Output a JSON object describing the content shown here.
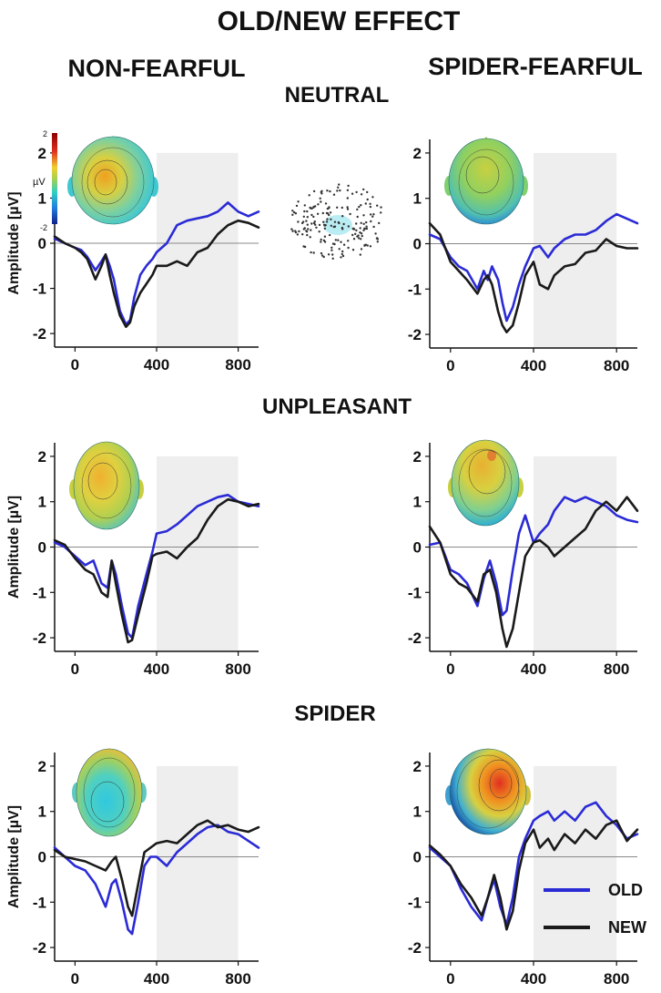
{
  "title": "OLD/NEW EFFECT",
  "columns": [
    "NON-FEARFUL",
    "SPIDER-FEARFUL"
  ],
  "rows": [
    "NEUTRAL",
    "UNPLEASANT",
    "SPIDER"
  ],
  "colors": {
    "old": "#2b2bd6",
    "new": "#1a1a1a",
    "shade": "#eeeeee",
    "zero_line": "#888888"
  },
  "colorbar": {
    "unit": "µV",
    "max_label": "2",
    "min_label": "-2"
  },
  "legend": [
    {
      "key": "old",
      "label": "OLD"
    },
    {
      "key": "new",
      "label": "NEW"
    }
  ],
  "chart_data": [
    {
      "type": "line",
      "row": "NEUTRAL",
      "group": "NON-FEARFUL",
      "ylabel": "Amplitude [µV]",
      "xlabel": "",
      "xlim": [
        -100,
        900
      ],
      "ylim": [
        -2.3,
        2.3
      ],
      "xticks": [
        0,
        400,
        800
      ],
      "yticks": [
        -2,
        -1,
        0,
        1,
        2
      ],
      "shaded_window": [
        400,
        800
      ],
      "series": [
        {
          "name": "OLD",
          "x": [
            -100,
            -50,
            0,
            30,
            60,
            100,
            130,
            150,
            170,
            190,
            220,
            250,
            270,
            290,
            320,
            350,
            380,
            400,
            450,
            500,
            550,
            600,
            650,
            700,
            750,
            800,
            850,
            900
          ],
          "y": [
            0.1,
            0,
            -0.1,
            -0.15,
            -0.3,
            -0.6,
            -0.4,
            -0.25,
            -0.5,
            -0.8,
            -1.5,
            -1.8,
            -1.7,
            -1.2,
            -0.7,
            -0.5,
            -0.35,
            -0.2,
            0,
            0.4,
            0.5,
            0.55,
            0.6,
            0.7,
            0.9,
            0.7,
            0.6,
            0.7
          ]
        },
        {
          "name": "NEW",
          "x": [
            -100,
            -50,
            0,
            30,
            60,
            100,
            130,
            150,
            170,
            190,
            220,
            250,
            270,
            290,
            320,
            350,
            380,
            400,
            450,
            500,
            550,
            600,
            650,
            700,
            750,
            800,
            850,
            900
          ],
          "y": [
            0.15,
            0,
            -0.1,
            -0.2,
            -0.35,
            -0.8,
            -0.5,
            -0.25,
            -0.7,
            -1.1,
            -1.6,
            -1.85,
            -1.75,
            -1.4,
            -1.1,
            -0.9,
            -0.7,
            -0.5,
            -0.5,
            -0.4,
            -0.5,
            -0.2,
            -0.1,
            0.2,
            0.4,
            0.5,
            0.45,
            0.35
          ]
        }
      ]
    },
    {
      "type": "line",
      "row": "NEUTRAL",
      "group": "SPIDER-FEARFUL",
      "ylabel": "Amplitude [µV]",
      "xlabel": "",
      "xlim": [
        -100,
        900
      ],
      "ylim": [
        -2.3,
        2.3
      ],
      "xticks": [
        0,
        400,
        800
      ],
      "yticks": [
        -2,
        -1,
        0,
        1,
        2
      ],
      "shaded_window": [
        400,
        800
      ],
      "series": [
        {
          "name": "OLD",
          "x": [
            -100,
            -50,
            0,
            40,
            80,
            130,
            160,
            180,
            200,
            230,
            250,
            270,
            300,
            330,
            360,
            400,
            430,
            470,
            500,
            550,
            600,
            650,
            700,
            750,
            800,
            850,
            900
          ],
          "y": [
            0.2,
            0.1,
            -0.3,
            -0.5,
            -0.6,
            -1.0,
            -0.6,
            -0.8,
            -0.5,
            -0.8,
            -1.3,
            -1.7,
            -1.4,
            -0.9,
            -0.5,
            -0.1,
            -0.05,
            -0.3,
            -0.1,
            0.1,
            0.2,
            0.2,
            0.3,
            0.5,
            0.65,
            0.55,
            0.45
          ]
        },
        {
          "name": "NEW",
          "x": [
            -100,
            -50,
            0,
            40,
            80,
            130,
            160,
            180,
            200,
            230,
            250,
            270,
            300,
            330,
            360,
            400,
            430,
            470,
            500,
            550,
            600,
            650,
            700,
            750,
            800,
            850,
            900
          ],
          "y": [
            0.45,
            0.2,
            -0.4,
            -0.6,
            -0.8,
            -1.1,
            -0.8,
            -0.7,
            -0.9,
            -1.5,
            -1.8,
            -1.95,
            -1.8,
            -1.3,
            -0.7,
            -0.4,
            -0.9,
            -1.0,
            -0.7,
            -0.5,
            -0.45,
            -0.2,
            -0.15,
            0.1,
            -0.05,
            -0.1,
            -0.1
          ]
        }
      ]
    },
    {
      "type": "line",
      "row": "UNPLEASANT",
      "group": "NON-FEARFUL",
      "ylabel": "Amplitude [µV]",
      "xlabel": "",
      "xlim": [
        -100,
        900
      ],
      "ylim": [
        -2.3,
        2.3
      ],
      "xticks": [
        0,
        400,
        800
      ],
      "yticks": [
        -2,
        -1,
        0,
        1,
        2
      ],
      "shaded_window": [
        400,
        800
      ],
      "series": [
        {
          "name": "OLD",
          "x": [
            -100,
            -50,
            0,
            50,
            90,
            130,
            160,
            180,
            200,
            230,
            260,
            280,
            310,
            350,
            380,
            400,
            450,
            500,
            550,
            600,
            650,
            700,
            750,
            800,
            850,
            900
          ],
          "y": [
            0.1,
            0,
            -0.2,
            -0.4,
            -0.3,
            -0.8,
            -0.9,
            -0.3,
            -0.6,
            -1.3,
            -1.9,
            -2.0,
            -1.3,
            -0.6,
            -0.1,
            0.3,
            0.35,
            0.5,
            0.7,
            0.9,
            1.0,
            1.1,
            1.15,
            1.0,
            0.95,
            0.9
          ]
        },
        {
          "name": "NEW",
          "x": [
            -100,
            -50,
            0,
            50,
            90,
            130,
            160,
            180,
            200,
            230,
            260,
            280,
            310,
            350,
            380,
            400,
            450,
            500,
            550,
            600,
            650,
            700,
            750,
            800,
            850,
            900
          ],
          "y": [
            0.15,
            0.05,
            -0.25,
            -0.5,
            -0.6,
            -1.0,
            -1.1,
            -0.3,
            -0.8,
            -1.5,
            -2.1,
            -2.05,
            -1.5,
            -0.8,
            -0.2,
            -0.15,
            -0.1,
            -0.25,
            0,
            0.2,
            0.6,
            0.9,
            1.05,
            1.0,
            0.9,
            0.95
          ]
        }
      ]
    },
    {
      "type": "line",
      "row": "UNPLEASANT",
      "group": "SPIDER-FEARFUL",
      "ylabel": "Amplitude [µV]",
      "xlabel": "",
      "xlim": [
        -100,
        900
      ],
      "ylim": [
        -2.3,
        2.3
      ],
      "xticks": [
        0,
        400,
        800
      ],
      "yticks": [
        -2,
        -1,
        0,
        1,
        2
      ],
      "shaded_window": [
        400,
        800
      ],
      "series": [
        {
          "name": "OLD",
          "x": [
            -100,
            -50,
            0,
            40,
            80,
            130,
            160,
            190,
            220,
            250,
            270,
            300,
            330,
            360,
            400,
            430,
            470,
            500,
            550,
            600,
            650,
            700,
            750,
            800,
            850,
            900
          ],
          "y": [
            0.05,
            0.1,
            -0.5,
            -0.6,
            -0.8,
            -1.3,
            -0.7,
            -0.3,
            -0.8,
            -1.5,
            -1.4,
            -0.5,
            0.3,
            0.7,
            0.1,
            0.3,
            0.5,
            0.8,
            1.1,
            1.0,
            1.1,
            1.0,
            0.9,
            0.7,
            0.6,
            0.55
          ]
        },
        {
          "name": "NEW",
          "x": [
            -100,
            -50,
            0,
            40,
            80,
            130,
            160,
            190,
            220,
            250,
            270,
            300,
            330,
            360,
            400,
            430,
            470,
            500,
            550,
            600,
            650,
            700,
            750,
            800,
            850,
            900
          ],
          "y": [
            0.45,
            0.1,
            -0.6,
            -0.8,
            -0.9,
            -1.2,
            -0.6,
            -0.5,
            -1.0,
            -1.8,
            -2.2,
            -1.8,
            -1.0,
            -0.2,
            0.1,
            0.15,
            0,
            -0.2,
            0,
            0.2,
            0.4,
            0.8,
            1.0,
            0.8,
            1.1,
            0.8
          ]
        }
      ]
    },
    {
      "type": "line",
      "row": "SPIDER",
      "group": "NON-FEARFUL",
      "ylabel": "Amplitude [µV]",
      "xlabel": "",
      "xlim": [
        -100,
        900
      ],
      "ylim": [
        -2.3,
        2.3
      ],
      "xticks": [
        0,
        400,
        800
      ],
      "yticks": [
        -2,
        -1,
        0,
        1,
        2
      ],
      "shaded_window": [
        400,
        800
      ],
      "series": [
        {
          "name": "OLD",
          "x": [
            -100,
            -50,
            0,
            50,
            100,
            150,
            180,
            200,
            230,
            260,
            280,
            310,
            340,
            370,
            400,
            450,
            500,
            550,
            600,
            650,
            700,
            750,
            800,
            850,
            900
          ],
          "y": [
            0.2,
            0,
            -0.2,
            -0.3,
            -0.6,
            -1.1,
            -0.6,
            -0.5,
            -1.0,
            -1.6,
            -1.7,
            -1.0,
            -0.2,
            0,
            0,
            -0.2,
            0.1,
            0.3,
            0.5,
            0.65,
            0.7,
            0.55,
            0.5,
            0.35,
            0.2
          ]
        },
        {
          "name": "NEW",
          "x": [
            -100,
            -50,
            0,
            50,
            100,
            150,
            180,
            200,
            230,
            260,
            280,
            310,
            340,
            370,
            400,
            450,
            500,
            550,
            600,
            650,
            700,
            750,
            800,
            850,
            900
          ],
          "y": [
            0.15,
            0,
            -0.05,
            -0.1,
            -0.2,
            -0.3,
            -0.1,
            0,
            -0.5,
            -1.1,
            -1.3,
            -0.6,
            0.1,
            0.2,
            0.3,
            0.35,
            0.3,
            0.5,
            0.7,
            0.8,
            0.65,
            0.7,
            0.6,
            0.55,
            0.65
          ]
        }
      ]
    },
    {
      "type": "line",
      "row": "SPIDER",
      "group": "SPIDER-FEARFUL",
      "ylabel": "Amplitude [µV]",
      "xlabel": "",
      "xlim": [
        -100,
        900
      ],
      "ylim": [
        -2.3,
        2.3
      ],
      "xticks": [
        0,
        400,
        800
      ],
      "yticks": [
        -2,
        -1,
        0,
        1,
        2
      ],
      "shaded_window": [
        400,
        800
      ],
      "series": [
        {
          "name": "OLD",
          "x": [
            -100,
            -50,
            0,
            50,
            100,
            150,
            180,
            210,
            240,
            270,
            300,
            330,
            360,
            400,
            430,
            470,
            500,
            550,
            600,
            650,
            700,
            750,
            800,
            850,
            900
          ],
          "y": [
            0.2,
            0,
            -0.2,
            -0.7,
            -1.1,
            -1.4,
            -0.9,
            -0.5,
            -1.1,
            -1.5,
            -0.9,
            0,
            0.4,
            0.8,
            0.9,
            1.0,
            0.8,
            1.0,
            0.8,
            1.1,
            1.2,
            0.9,
            0.7,
            0.4,
            0.5
          ]
        },
        {
          "name": "NEW",
          "x": [
            -100,
            -50,
            0,
            50,
            100,
            150,
            180,
            210,
            240,
            270,
            300,
            330,
            360,
            400,
            430,
            470,
            500,
            550,
            600,
            650,
            700,
            750,
            800,
            850,
            900
          ],
          "y": [
            0.25,
            0.05,
            -0.2,
            -0.6,
            -0.9,
            -1.3,
            -0.9,
            -0.4,
            -0.9,
            -1.6,
            -1.2,
            -0.3,
            0.3,
            0.6,
            0.2,
            0.4,
            0.15,
            0.5,
            0.3,
            0.6,
            0.4,
            0.7,
            0.8,
            0.35,
            0.6
          ]
        }
      ]
    }
  ]
}
